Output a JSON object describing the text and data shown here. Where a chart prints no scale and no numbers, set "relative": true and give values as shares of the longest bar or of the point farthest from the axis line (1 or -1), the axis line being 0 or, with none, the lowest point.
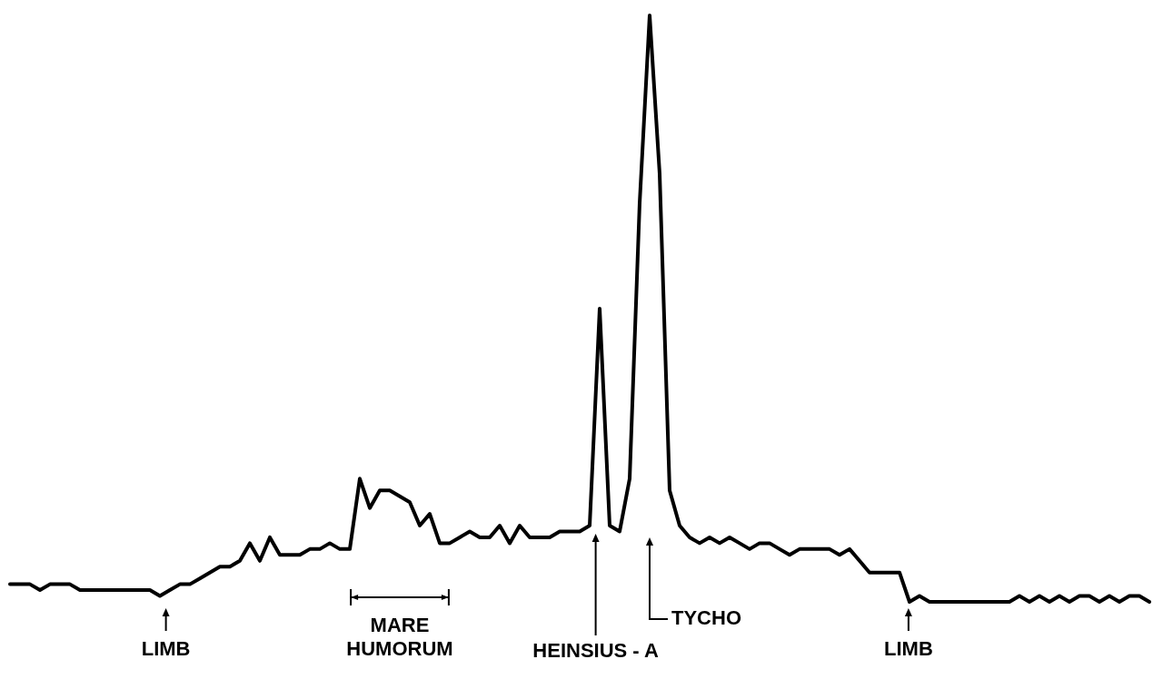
{
  "chart_data": {
    "type": "line",
    "relative": true,
    "marker": "none",
    "line_style": "solid",
    "categories": [
      null,
      null,
      null,
      null,
      null,
      null,
      null,
      null,
      null,
      null,
      null,
      null,
      null,
      null,
      null,
      null,
      null,
      null,
      null,
      null,
      null,
      null,
      null,
      null,
      null,
      null,
      null,
      null,
      null,
      null,
      null,
      null,
      null,
      null,
      null,
      null,
      null,
      null,
      null,
      null,
      null,
      null,
      null,
      null,
      null,
      null,
      null,
      null,
      null,
      null,
      null,
      null,
      null,
      null,
      null,
      null,
      null,
      null,
      null,
      null,
      null,
      null,
      null,
      null,
      null,
      null,
      null,
      null,
      null,
      null,
      null,
      null,
      null,
      null,
      null,
      null,
      null,
      null,
      null,
      null,
      null,
      null,
      null,
      null,
      null,
      null,
      null,
      null,
      null,
      null,
      null,
      null,
      null,
      null,
      null,
      null,
      null,
      null,
      null,
      null,
      null,
      null,
      null,
      null,
      null,
      null,
      null,
      null,
      null,
      null,
      null,
      null,
      null,
      null,
      null
    ],
    "series": [
      {
        "color": "#000000",
        "values": [
          0.03,
          0.03,
          0.03,
          0.02,
          0.03,
          0.03,
          0.03,
          0.02,
          0.02,
          0.02,
          0.02,
          0.02,
          0.02,
          0.02,
          0.02,
          0.01,
          0.02,
          0.03,
          0.03,
          0.04,
          0.05,
          0.06,
          0.06,
          0.07,
          0.1,
          0.07,
          0.11,
          0.08,
          0.08,
          0.08,
          0.09,
          0.09,
          0.1,
          0.09,
          0.09,
          0.21,
          0.16,
          0.19,
          0.19,
          0.18,
          0.17,
          0.13,
          0.15,
          0.1,
          0.1,
          0.11,
          0.12,
          0.11,
          0.11,
          0.13,
          0.1,
          0.13,
          0.11,
          0.11,
          0.11,
          0.12,
          0.12,
          0.12,
          0.13,
          0.5,
          0.13,
          0.12,
          0.21,
          0.68,
          1,
          0.73,
          0.19,
          0.13,
          0.11,
          0.1,
          0.11,
          0.1,
          0.11,
          0.1,
          0.09,
          0.1,
          0.1,
          0.09,
          0.08,
          0.09,
          0.09,
          0.09,
          0.09,
          0.08,
          0.09,
          0.07,
          0.05,
          0.05,
          0.05,
          0.05,
          0.0,
          0.01,
          0.0,
          0.0,
          0.0,
          0.0,
          0.0,
          0.0,
          0.0,
          0.0,
          0.0,
          0.01,
          0.0,
          0.01,
          0.0,
          0.01,
          0.0,
          0.01,
          0.01,
          0.0,
          0.01,
          0.0,
          0.01,
          0.01,
          0.0
        ]
      }
    ],
    "annotations": [
      "LIMB",
      "MARE HUMORUM",
      "HEINSIUS - A",
      "TYCHO",
      "LIMB"
    ]
  }
}
